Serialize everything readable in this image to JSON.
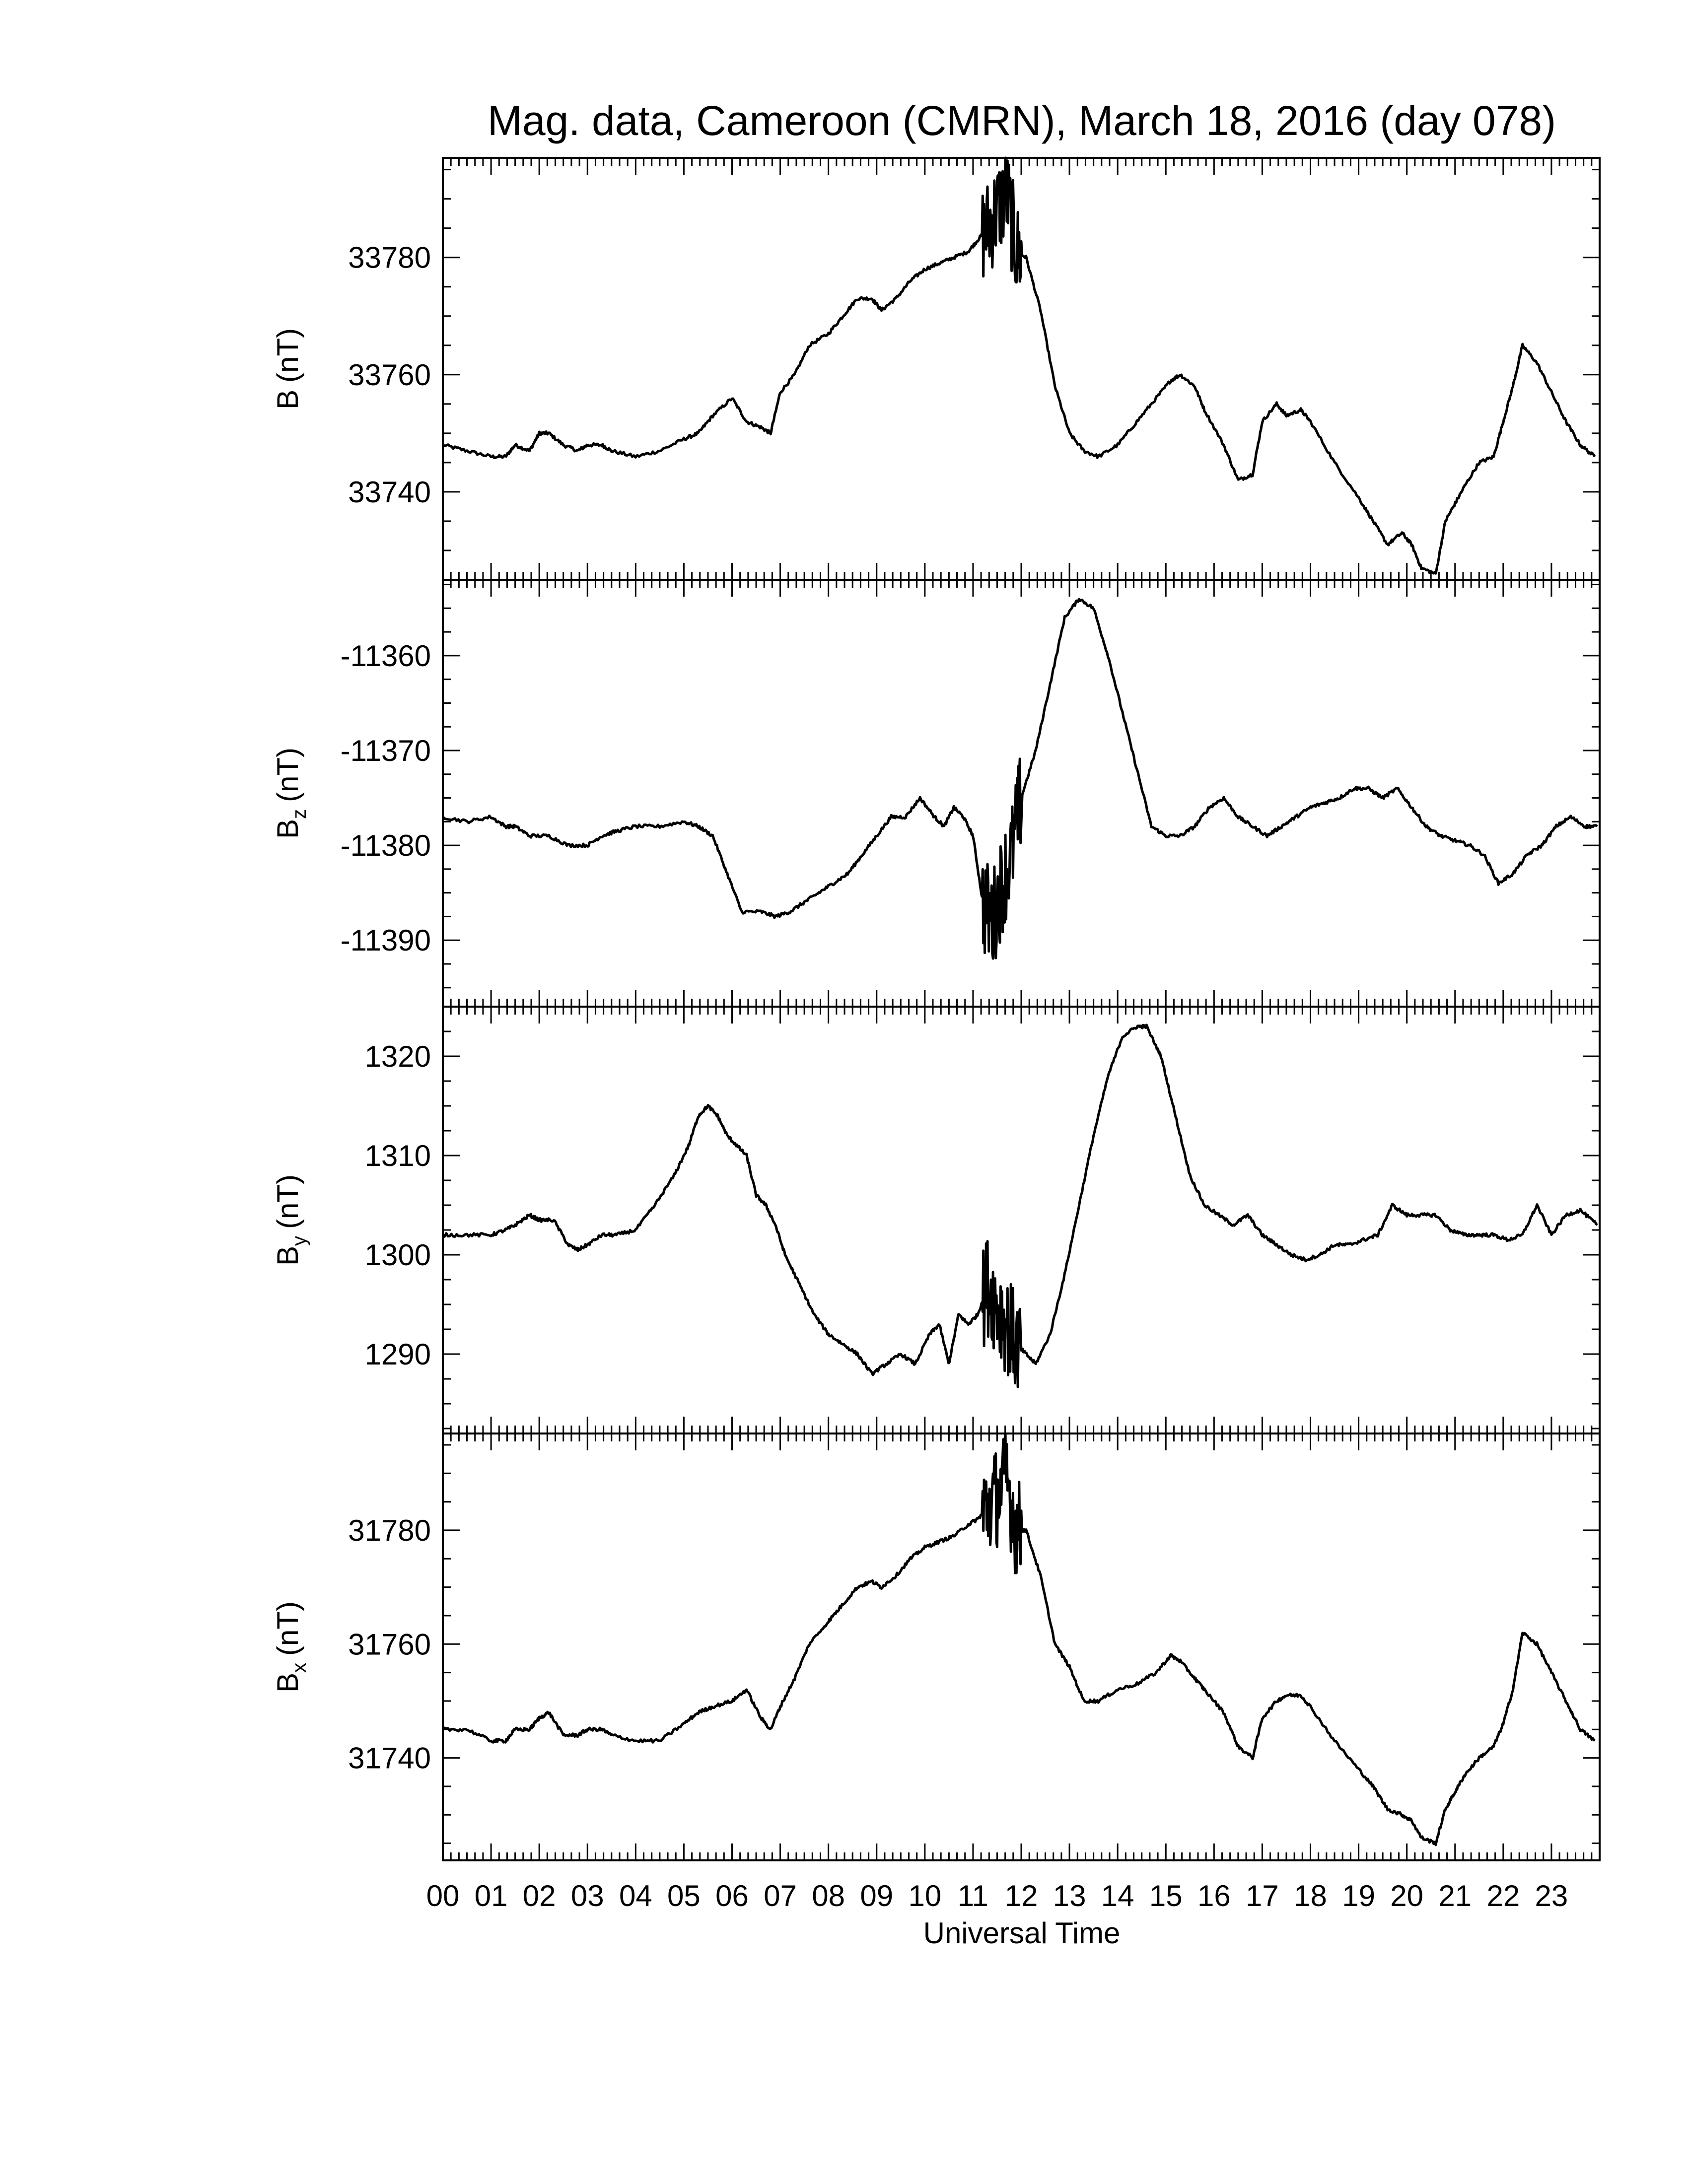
{
  "chart_data": {
    "type": "line",
    "title": "Mag. data, Cameroon (CMRN), March 18, 2016 (day 078)",
    "xlabel": "Universal Time",
    "x_unit": "hours UT",
    "xlim": [
      0,
      24
    ],
    "x_tick_labels": [
      "00",
      "01",
      "02",
      "03",
      "04",
      "05",
      "06",
      "07",
      "08",
      "09",
      "10",
      "11",
      "12",
      "13",
      "14",
      "15",
      "16",
      "17",
      "18",
      "19",
      "20",
      "21",
      "22",
      "23"
    ],
    "grid": false,
    "panels": [
      {
        "id": "B",
        "ylabel_main": "B",
        "ylabel_sub": "",
        "ylabel_unit": "(nT)",
        "ylim": [
          33725,
          33797
        ],
        "yticks": [
          33740,
          33760,
          33780
        ],
        "series": [
          {
            "x": [
              0,
              0.5,
              1,
              1.3,
              1.5,
              1.8,
              2.0,
              2.2,
              2.5,
              2.8,
              3.0,
              3.3,
              3.5,
              4.0,
              4.5,
              5.0,
              5.3,
              5.6,
              6.0,
              6.3,
              6.6,
              6.8,
              7.0,
              7.3,
              7.6,
              8.0,
              8.3,
              8.6,
              8.9,
              9.1,
              9.4,
              9.7,
              10.0,
              10.3,
              10.6,
              10.9,
              11.1,
              11.3,
              11.5,
              11.7,
              11.9,
              12.1,
              12.4,
              12.7,
              13.0,
              13.3,
              13.6,
              14.0,
              14.4,
              14.8,
              15.1,
              15.3,
              15.6,
              15.8,
              16.2,
              16.5,
              16.8,
              17.0,
              17.3,
              17.5,
              17.8,
              18.0,
              18.5,
              19.0,
              19.3,
              19.6,
              19.9,
              20.1,
              20.3,
              20.6,
              20.8,
              21.0,
              21.2,
              21.5,
              21.8,
              22.0,
              22.2,
              22.4,
              22.7,
              23.0,
              23.3,
              23.6,
              23.9
            ],
            "y": [
              33748,
              33747,
              33746,
              33746,
              33748,
              33747,
              33750,
              33750,
              33748,
              33747,
              33748,
              33748,
              33747,
              33746,
              33747,
              33749,
              33750,
              33753,
              33756,
              33752,
              33751,
              33750,
              33757,
              33760,
              33765,
              33767,
              33770,
              33773,
              33773,
              33771,
              33773,
              33776,
              33778,
              33779,
              33780,
              33781,
              33783,
              33785,
              33788,
              33791,
              33781,
              33780,
              33771,
              33758,
              33750,
              33747,
              33746,
              33748,
              33752,
              33756,
              33759,
              33760,
              33758,
              33754,
              33748,
              33742,
              33743,
              33752,
              33755,
              33753,
              33754,
              33752,
              33745,
              33739,
              33735,
              33731,
              33733,
              33731,
              33727,
              33726,
              33735,
              33738,
              33741,
              33745,
              33746,
              33752,
              33758,
              33765,
              33762,
              33757,
              33752,
              33748,
              33746
            ]
          }
        ],
        "noise_band": [
          11.2,
          12.0
        ]
      },
      {
        "id": "Bz",
        "ylabel_main": "B",
        "ylabel_sub": "z",
        "ylabel_unit": "(nT)",
        "ylim": [
          -11397,
          -11352
        ],
        "yticks": [
          -11360,
          -11370,
          -11380,
          -11390
        ],
        "series": [
          {
            "x": [
              0,
              0.5,
              1,
              1.3,
              1.5,
              1.8,
              2.2,
              2.6,
              3.0,
              3.3,
              3.6,
              4.0,
              4.5,
              5.0,
              5.3,
              5.6,
              5.9,
              6.2,
              6.6,
              6.9,
              7.2,
              7.5,
              7.8,
              8.1,
              8.4,
              8.7,
              9.0,
              9.3,
              9.6,
              9.9,
              10.2,
              10.4,
              10.6,
              10.8,
              11.0,
              11.2,
              11.4,
              11.6,
              11.8,
              12.0,
              12.3,
              12.6,
              12.9,
              13.2,
              13.5,
              13.8,
              14.1,
              14.4,
              14.7,
              15.0,
              15.3,
              15.6,
              15.9,
              16.2,
              16.5,
              16.8,
              17.1,
              17.4,
              17.7,
              18.0,
              18.3,
              18.6,
              18.9,
              19.2,
              19.5,
              19.8,
              20.1,
              20.4,
              20.7,
              21.0,
              21.3,
              21.6,
              21.9,
              22.2,
              22.5,
              22.8,
              23.1,
              23.4,
              23.7,
              23.95
            ],
            "y": [
              -11377,
              -11377.5,
              -11377,
              -11378,
              -11378,
              -11379,
              -11379,
              -11380,
              -11380,
              -11379,
              -11378.5,
              -11378,
              -11378,
              -11377.5,
              -11378,
              -11379,
              -11383,
              -11387,
              -11387,
              -11387.5,
              -11387,
              -11386,
              -11385,
              -11384,
              -11383,
              -11381,
              -11379,
              -11377,
              -11377,
              -11375,
              -11377,
              -11378,
              -11376,
              -11377,
              -11379,
              -11386,
              -11388,
              -11384,
              -11381,
              -11375,
              -11370,
              -11363,
              -11356,
              -11354,
              -11355,
              -11360,
              -11366,
              -11372,
              -11378,
              -11379,
              -11379,
              -11378,
              -11376,
              -11375,
              -11377,
              -11378,
              -11379,
              -11378,
              -11377,
              -11376,
              -11375.5,
              -11375,
              -11374,
              -11374,
              -11375,
              -11374,
              -11376,
              -11378,
              -11379,
              -11379.5,
              -11380,
              -11381,
              -11384,
              -11383,
              -11381,
              -11380,
              -11378,
              -11377,
              -11378,
              -11378
            ]
          }
        ],
        "noise_band": [
          11.2,
          12.0
        ]
      },
      {
        "id": "By",
        "ylabel_main": "B",
        "ylabel_sub": "y",
        "ylabel_unit": "(nT)",
        "ylim": [
          1282,
          1325
        ],
        "yticks": [
          1290,
          1300,
          1310,
          1320
        ],
        "series": [
          {
            "x": [
              0,
              0.5,
              1,
              1.3,
              1.5,
              1.8,
              2.0,
              2.3,
              2.6,
              2.8,
              3.0,
              3.3,
              3.6,
              4.0,
              4.4,
              4.8,
              5.1,
              5.3,
              5.5,
              5.7,
              5.9,
              6.1,
              6.3,
              6.5,
              6.7,
              6.9,
              7.1,
              7.4,
              7.7,
              8.0,
              8.3,
              8.6,
              8.9,
              9.2,
              9.5,
              9.8,
              10.1,
              10.3,
              10.5,
              10.7,
              10.9,
              11.1,
              11.3,
              11.5,
              11.7,
              11.9,
              12.1,
              12.3,
              12.6,
              12.9,
              13.2,
              13.5,
              13.8,
              14.1,
              14.4,
              14.6,
              14.9,
              15.2,
              15.5,
              15.8,
              16.1,
              16.4,
              16.7,
              17.0,
              17.3,
              17.6,
              17.9,
              18.2,
              18.5,
              18.8,
              19.1,
              19.4,
              19.7,
              20.0,
              20.3,
              20.6,
              20.9,
              21.2,
              21.5,
              21.8,
              22.1,
              22.4,
              22.7,
              23.0,
              23.3,
              23.6,
              23.95
            ],
            "y": [
              1302,
              1302,
              1302,
              1302.5,
              1303,
              1304,
              1303.5,
              1303.5,
              1301,
              1300.5,
              1301,
              1302,
              1302,
              1302.5,
              1305,
              1308,
              1311,
              1314,
              1315,
              1314,
              1312,
              1311,
              1310,
              1306,
              1305,
              1303,
              1300,
              1297,
              1294,
              1292,
              1291,
              1290,
              1288,
              1289,
              1290,
              1289,
              1292,
              1293,
              1289,
              1294,
              1293,
              1294,
              1297,
              1295,
              1293,
              1291,
              1290,
              1289,
              1292,
              1298,
              1305,
              1312,
              1318,
              1322,
              1323,
              1323,
              1320,
              1314,
              1308,
              1305,
              1304,
              1303,
              1304,
              1302,
              1301,
              1300,
              1299.5,
              1300,
              1301,
              1301,
              1301.5,
              1302,
              1305,
              1304,
              1304,
              1304,
              1302.5,
              1302,
              1302,
              1302,
              1301.5,
              1302,
              1305,
              1302,
              1304,
              1304.5,
              1303
            ]
          }
        ],
        "noise_band": [
          11.2,
          12.0
        ]
      },
      {
        "id": "Bx",
        "ylabel_main": "B",
        "ylabel_sub": "x",
        "ylabel_unit": "(nT)",
        "ylim": [
          31722,
          31797
        ],
        "yticks": [
          31740,
          31760,
          31780
        ],
        "series": [
          {
            "x": [
              0,
              0.5,
              1,
              1.3,
              1.5,
              1.8,
              2.0,
              2.2,
              2.5,
              2.8,
              3.0,
              3.3,
              3.5,
              4.0,
              4.5,
              5.0,
              5.3,
              5.6,
              6.0,
              6.3,
              6.6,
              6.8,
              7.0,
              7.3,
              7.6,
              8.0,
              8.3,
              8.6,
              8.9,
              9.1,
              9.4,
              9.7,
              10.0,
              10.3,
              10.6,
              10.9,
              11.1,
              11.3,
              11.5,
              11.7,
              11.9,
              12.1,
              12.4,
              12.7,
              13.0,
              13.3,
              13.6,
              14.0,
              14.4,
              14.8,
              15.1,
              15.3,
              15.6,
              15.8,
              16.2,
              16.5,
              16.8,
              17.0,
              17.3,
              17.5,
              17.8,
              18.0,
              18.5,
              19.0,
              19.3,
              19.6,
              19.9,
              20.1,
              20.3,
              20.6,
              20.8,
              21.0,
              21.2,
              21.5,
              21.8,
              22.0,
              22.2,
              22.4,
              22.7,
              23.0,
              23.3,
              23.6,
              23.9
            ],
            "y": [
              31745,
              31745,
              31743,
              31743,
              31745,
              31745,
              31747,
              31748,
              31744,
              31744,
              31745,
              31745,
              31744,
              31743,
              31743,
              31746,
              31748,
              31749,
              31750,
              31752,
              31747,
              31745,
              31749,
              31754,
              31760,
              31764,
              31767,
              31770,
              31771,
              31770,
              31772,
              31775,
              31777,
              31778,
              31779,
              31781,
              31782,
              31784,
              31786,
              31789,
              31780,
              31780,
              31772,
              31760,
              31756,
              31750,
              31750,
              31752,
              31753,
              31755,
              31758,
              31757,
              31754,
              31752,
              31748,
              31742,
              31740,
              31747,
              31750,
              31751,
              31751,
              31749,
              31743,
              31738,
              31735,
              31731,
              31730,
              31729,
              31726,
              31725,
              31731,
              31734,
              31737,
              31740,
              31742,
              31746,
              31752,
              31762,
              31760,
              31755,
              31750,
              31745,
              31743
            ]
          }
        ],
        "noise_band": [
          11.2,
          12.0
        ]
      }
    ]
  }
}
